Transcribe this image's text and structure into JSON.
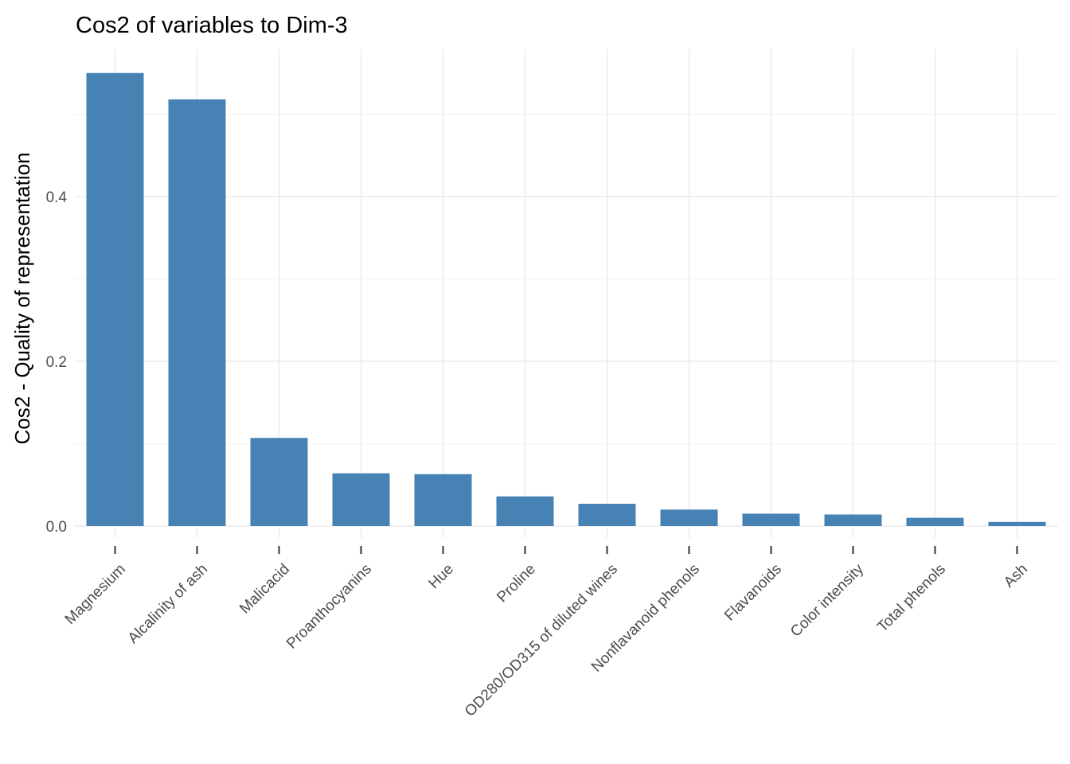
{
  "chart_data": {
    "type": "bar",
    "title": "Cos2 of variables to Dim-3",
    "xlabel": "",
    "ylabel": "Cos2 - Quality of representation",
    "categories": [
      "Magnesium",
      "Alcalinity of ash",
      "Malicacid",
      "Proanthocyanins",
      "Hue",
      "Proline",
      "OD280/OD315 of diluted wines",
      "Nonflavanoid phenols",
      "Flavanoids",
      "Color intensity",
      "Total phenols",
      "Ash"
    ],
    "values": [
      0.55,
      0.518,
      0.107,
      0.064,
      0.063,
      0.036,
      0.027,
      0.02,
      0.015,
      0.014,
      0.01,
      0.005
    ],
    "ylim": [
      0,
      0.55
    ],
    "y_ticks": [
      0.0,
      0.2,
      0.4
    ],
    "y_tick_labels": [
      "0.0",
      "0.2",
      "0.4"
    ],
    "grid": true,
    "bar_color": "#4682B4"
  }
}
